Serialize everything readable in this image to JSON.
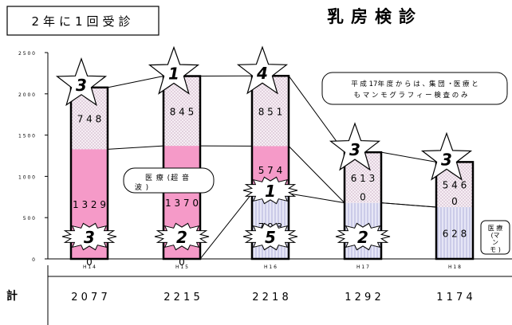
{
  "header": {
    "title": "乳房検診",
    "badge": "2年に1回受診"
  },
  "chart_data": {
    "type": "bar",
    "categories": [
      "H14",
      "H15",
      "H16",
      "H17",
      "H18"
    ],
    "ylim": [
      0,
      2500
    ],
    "yticks": [
      0,
      500,
      1000,
      1500,
      2000,
      2500
    ],
    "series": [
      {
        "values": [
          0,
          0,
          793,
          679,
          628
        ],
        "color": "#dcdcf0",
        "pattern": "vlines"
      },
      {
        "values": [
          1329,
          1370,
          574,
          0,
          0
        ],
        "color": "#f59ac8",
        "pattern": "none"
      },
      {
        "values": [
          748,
          845,
          851,
          613,
          546
        ],
        "color": "#f6eef4",
        "pattern": "dots"
      }
    ],
    "value_labels": [
      [
        "0",
        "1329",
        "748"
      ],
      [
        "0",
        "1370",
        "845"
      ],
      [
        "793",
        "574",
        "851"
      ],
      [
        "679",
        "0",
        "613"
      ],
      [
        "628",
        "0",
        "546"
      ]
    ],
    "star_markers": [
      "3",
      "1",
      "4",
      "3",
      "3"
    ],
    "burst_markers": {
      "bottom": [
        "3",
        "2",
        "5",
        "2",
        null
      ],
      "middle": [
        null,
        null,
        "1",
        null,
        null
      ]
    },
    "totals_label": "計",
    "totals": [
      "2077",
      "2215",
      "2218",
      "1292",
      "1174"
    ],
    "annotations": {
      "ultrasound": "医療(超音波)",
      "ultrasound_lines": [
        "医 療 (超 音",
        "波 )"
      ],
      "mammo": "医療(マンモ)",
      "mammo_lines": [
        "医 療",
        "(マ",
        "ン",
        "モ )"
      ],
      "notice": "平成17年度からは、集団・医療ともマンモグラフィー検査のみ",
      "notice_lines": [
        "平 成 17年 度 か ら は 、集 団 ・医 療 と",
        "も マ ン モ グ ラ フ ィ ー 検 査 の み"
      ]
    }
  }
}
